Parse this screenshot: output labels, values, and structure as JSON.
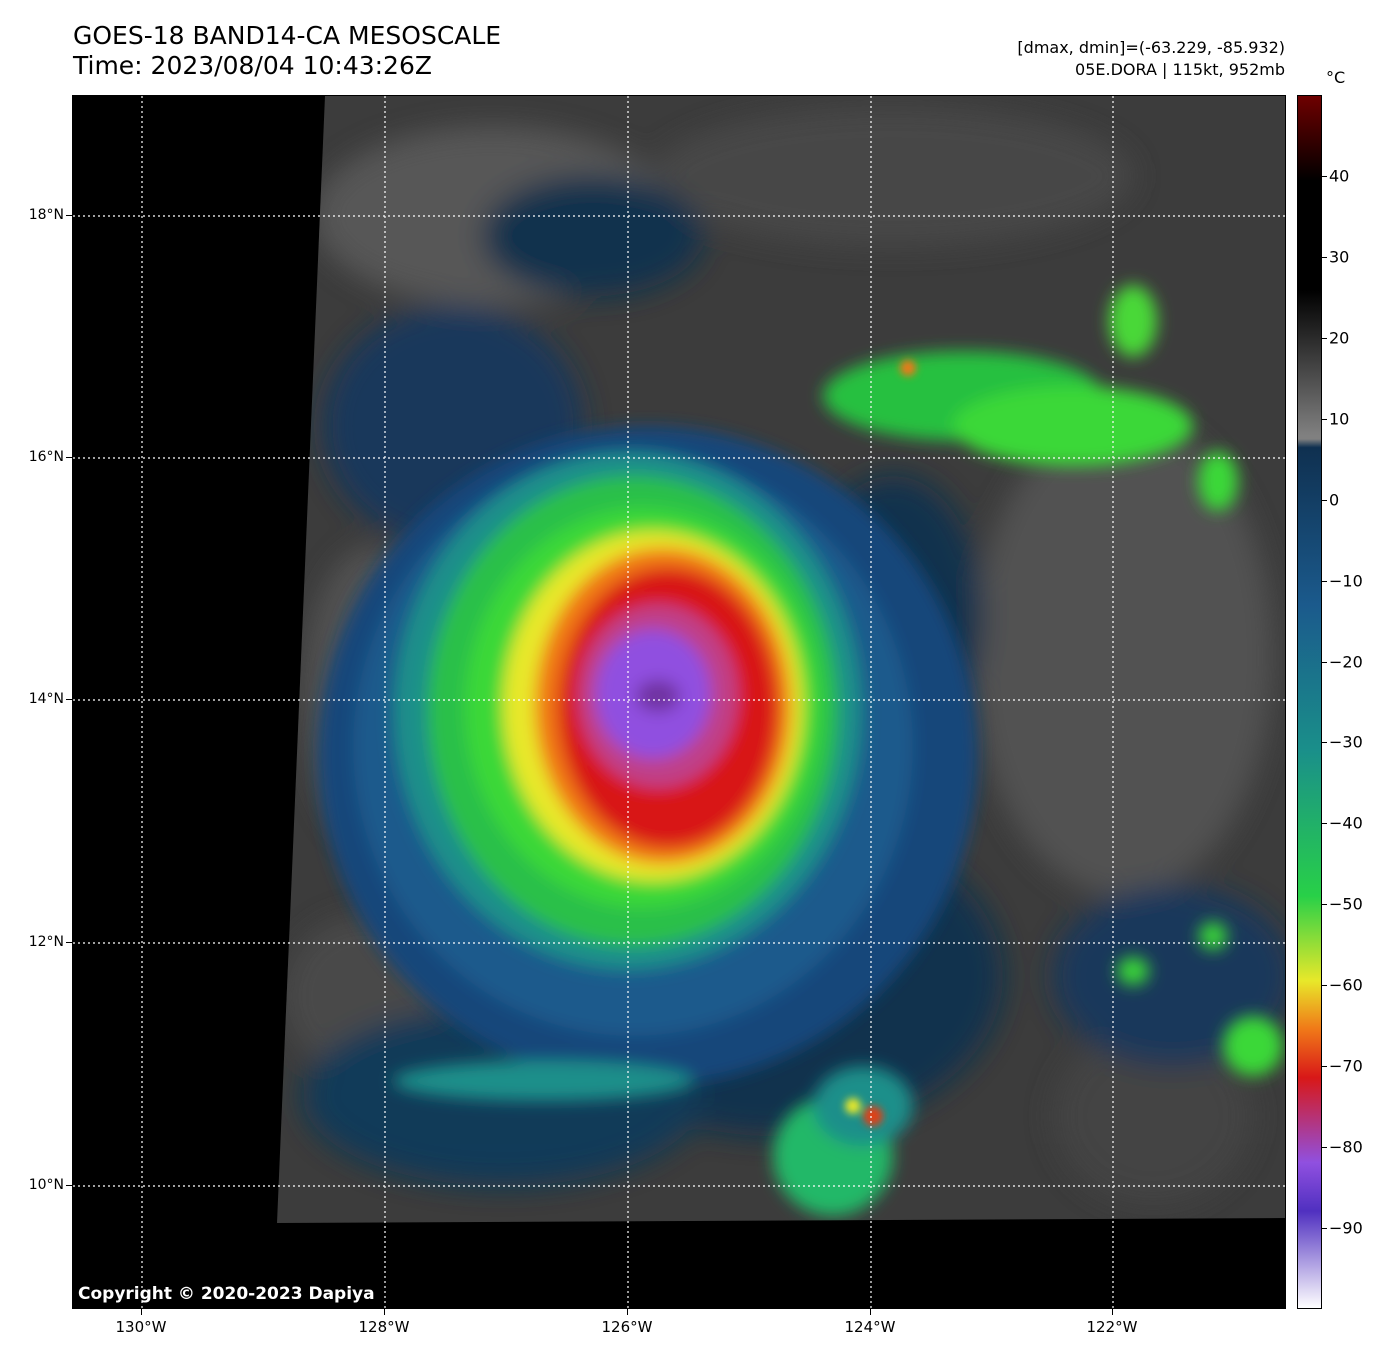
{
  "header": {
    "title_line1": "GOES-18 BAND14-CA MESOSCALE",
    "title_line2": "Time: 2023/08/04 10:43:26Z",
    "info_line1": "[dmax, dmin]=(-63.229, -85.932)",
    "info_line2": "05E.DORA | 115kt, 952mb"
  },
  "map": {
    "copyright": "Copyright © 2020-2023 Dapiya",
    "lat_labels": [
      "18°N",
      "16°N",
      "14°N",
      "12°N",
      "10°N"
    ],
    "lon_labels": [
      "130°W",
      "128°W",
      "126°W",
      "124°W",
      "122°W"
    ],
    "storm_name": "05E.DORA",
    "storm_intensity_kt": 115,
    "storm_pressure_mb": 952
  },
  "colorbar": {
    "unit": "°C",
    "tick_labels": [
      "40",
      "30",
      "20",
      "10",
      "0",
      "−10",
      "−20",
      "−30",
      "−40",
      "−50",
      "−60",
      "−70",
      "−80",
      "−90"
    ],
    "colors": {
      "warm_max": "#6e0000",
      "warm_black": "#000000",
      "gray": "#808080",
      "dark_blue": "#0f3050",
      "blue": "#1b5a8c",
      "teal": "#1a8f8a",
      "green": "#28d048",
      "yellow": "#e8e82a",
      "orange": "#f07818",
      "red": "#d81818",
      "purple": "#9050e0",
      "white": "#ffffff"
    }
  }
}
